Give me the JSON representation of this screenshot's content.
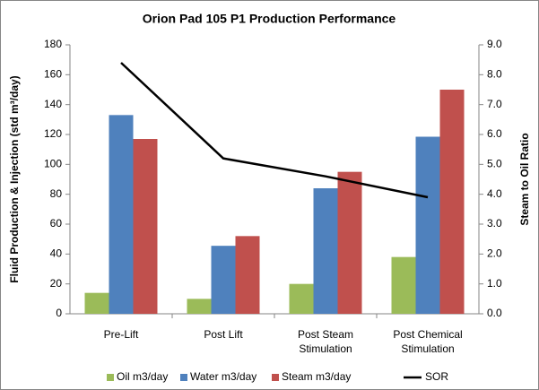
{
  "chart_data": {
    "type": "bar",
    "title": "Orion Pad 105 P1 Production Performance",
    "y_label": "Fluid Production & Injection (std m³/day)",
    "y2_label": "Steam to Oil Ratio",
    "categories": [
      "Pre-Lift",
      "Post Lift",
      "Post Steam Stimulation",
      "Post Chemical Stimulation"
    ],
    "series": [
      {
        "name": "Oil m3/day",
        "color": "#9bbb59",
        "values": [
          14,
          10,
          20,
          38
        ]
      },
      {
        "name": "Water m3/day",
        "color": "#4f81bd",
        "values": [
          133,
          45.5,
          84,
          118.5
        ]
      },
      {
        "name": "Steam m3/day",
        "color": "#c0504d",
        "values": [
          117,
          52,
          95,
          150
        ]
      },
      {
        "name": "SOR",
        "color": "#000000",
        "type": "line",
        "axis": "y2",
        "values": [
          8.4,
          5.2,
          4.6,
          3.9
        ]
      }
    ],
    "ylim": [
      0,
      180
    ],
    "yticks": [
      0,
      20,
      40,
      60,
      80,
      100,
      120,
      140,
      160,
      180
    ],
    "y2lim": [
      0,
      9
    ],
    "y2ticks": [
      {
        "value": 0,
        "label": "0.0"
      },
      {
        "value": 1,
        "label": "1.0"
      },
      {
        "value": 2,
        "label": "2.0"
      },
      {
        "value": 3,
        "label": "3.0"
      },
      {
        "value": 4,
        "label": "4.0"
      },
      {
        "value": 5,
        "label": "5.0"
      },
      {
        "value": 6,
        "label": "6.0"
      },
      {
        "value": 7,
        "label": "7.0"
      },
      {
        "value": 8,
        "label": "8.0"
      },
      {
        "value": 9,
        "label": "9.0"
      }
    ],
    "grid": false,
    "legend": "bottom"
  }
}
